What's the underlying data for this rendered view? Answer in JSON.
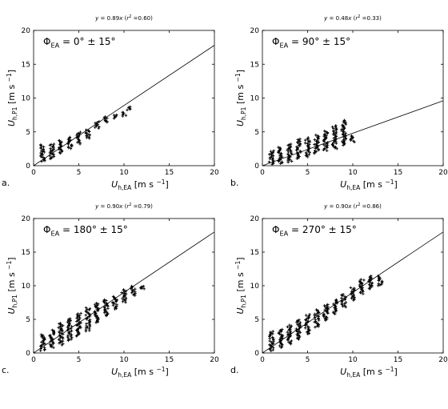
{
  "chart_data": [
    {
      "type": "scatter",
      "panel_label": "a.",
      "title": "y = 0.89x (r² =0.60)",
      "annotation": "Φ_EA = 0° ± 15°",
      "xlabel": "U_h,EA [m s⁻¹]",
      "ylabel": "U_h,P1 [m s⁻¹]",
      "xlim": [
        0,
        20
      ],
      "ylim": [
        0,
        20
      ],
      "xticks": [
        0,
        5,
        10,
        15,
        20
      ],
      "yticks": [
        0,
        5,
        10,
        15,
        20
      ],
      "grid": false,
      "fit": {
        "slope": 0.89,
        "r2": 0.6
      },
      "marker": "+",
      "clusters": [
        {
          "x": 1.0,
          "ymin": 0.6,
          "ymax": 3.2
        },
        {
          "x": 2.0,
          "ymin": 1.0,
          "ymax": 3.3
        },
        {
          "x": 3.0,
          "ymin": 1.8,
          "ymax": 3.8
        },
        {
          "x": 4.0,
          "ymin": 2.5,
          "ymax": 4.3
        },
        {
          "x": 5.0,
          "ymin": 3.2,
          "ymax": 5.0
        },
        {
          "x": 6.0,
          "ymin": 4.0,
          "ymax": 5.4
        },
        {
          "x": 7.0,
          "ymin": 5.5,
          "ymax": 6.6
        },
        {
          "x": 8.0,
          "ymin": 6.4,
          "ymax": 7.3
        },
        {
          "x": 9.0,
          "ymin": 7.0,
          "ymax": 7.6
        },
        {
          "x": 10.0,
          "ymin": 7.3,
          "ymax": 8.0
        },
        {
          "x": 10.5,
          "ymin": 8.2,
          "ymax": 8.8
        }
      ]
    },
    {
      "type": "scatter",
      "panel_label": "b.",
      "title": "y = 0.48x (r² =0.33)",
      "annotation": "Φ_EA = 90° ± 15°",
      "xlabel": "U_h,EA [m s⁻¹]",
      "ylabel": "U_h,P1 [m s⁻¹]",
      "xlim": [
        0,
        20
      ],
      "ylim": [
        0,
        20
      ],
      "xticks": [
        0,
        5,
        10,
        15,
        20
      ],
      "yticks": [
        0,
        5,
        10,
        15,
        20
      ],
      "grid": false,
      "fit": {
        "slope": 0.48,
        "r2": 0.33
      },
      "marker": "+",
      "clusters": [
        {
          "x": 1.0,
          "ymin": 0.2,
          "ymax": 2.3
        },
        {
          "x": 2.0,
          "ymin": 0.3,
          "ymax": 2.8
        },
        {
          "x": 3.0,
          "ymin": 0.5,
          "ymax": 3.3
        },
        {
          "x": 4.0,
          "ymin": 1.0,
          "ymax": 4.0
        },
        {
          "x": 5.0,
          "ymin": 1.3,
          "ymax": 4.2
        },
        {
          "x": 6.0,
          "ymin": 1.8,
          "ymax": 4.6
        },
        {
          "x": 7.0,
          "ymin": 2.2,
          "ymax": 5.2
        },
        {
          "x": 8.0,
          "ymin": 2.5,
          "ymax": 6.0
        },
        {
          "x": 9.0,
          "ymin": 3.0,
          "ymax": 6.8
        },
        {
          "x": 10.0,
          "ymin": 3.5,
          "ymax": 4.5
        }
      ]
    },
    {
      "type": "scatter",
      "panel_label": "c.",
      "title": "y = 0.90x (r² =0.79)",
      "annotation": "Φ_EA = 180° ± 15°",
      "xlabel": "U_h,EA [m s⁻¹]",
      "ylabel": "U_h,P1 [m s⁻¹]",
      "xlim": [
        0,
        20
      ],
      "ylim": [
        0,
        20
      ],
      "xticks": [
        0,
        5,
        10,
        15,
        20
      ],
      "yticks": [
        0,
        5,
        10,
        15,
        20
      ],
      "grid": false,
      "fit": {
        "slope": 0.9,
        "r2": 0.79
      },
      "marker": "+",
      "clusters": [
        {
          "x": 1.0,
          "ymin": 0.3,
          "ymax": 2.8
        },
        {
          "x": 2.0,
          "ymin": 0.8,
          "ymax": 3.5
        },
        {
          "x": 3.0,
          "ymin": 1.2,
          "ymax": 4.5
        },
        {
          "x": 4.0,
          "ymin": 1.8,
          "ymax": 5.2
        },
        {
          "x": 5.0,
          "ymin": 2.5,
          "ymax": 6.0
        },
        {
          "x": 6.0,
          "ymin": 3.2,
          "ymax": 6.8
        },
        {
          "x": 7.0,
          "ymin": 4.5,
          "ymax": 7.5
        },
        {
          "x": 8.0,
          "ymin": 5.5,
          "ymax": 8.0
        },
        {
          "x": 9.0,
          "ymin": 6.5,
          "ymax": 8.5
        },
        {
          "x": 10.0,
          "ymin": 7.5,
          "ymax": 9.5
        },
        {
          "x": 11.0,
          "ymin": 8.5,
          "ymax": 10.0
        },
        {
          "x": 12.0,
          "ymin": 9.5,
          "ymax": 10.0
        }
      ]
    },
    {
      "type": "scatter",
      "panel_label": "d.",
      "title": "y = 0.90x (r² =0.86)",
      "annotation": "Φ_EA = 270° ± 15°",
      "xlabel": "U_h,EA [m s⁻¹]",
      "ylabel": "U_h,P1 [m s⁻¹]",
      "xlim": [
        0,
        20
      ],
      "ylim": [
        0,
        20
      ],
      "xticks": [
        0,
        5,
        10,
        15,
        20
      ],
      "yticks": [
        0,
        5,
        10,
        15,
        20
      ],
      "grid": false,
      "fit": {
        "slope": 0.9,
        "r2": 0.86
      },
      "marker": "+",
      "clusters": [
        {
          "x": 1.0,
          "ymin": 0.3,
          "ymax": 3.3
        },
        {
          "x": 2.0,
          "ymin": 0.8,
          "ymax": 3.6
        },
        {
          "x": 3.0,
          "ymin": 1.3,
          "ymax": 4.2
        },
        {
          "x": 4.0,
          "ymin": 2.0,
          "ymax": 5.0
        },
        {
          "x": 5.0,
          "ymin": 2.8,
          "ymax": 5.8
        },
        {
          "x": 6.0,
          "ymin": 3.8,
          "ymax": 6.5
        },
        {
          "x": 7.0,
          "ymin": 4.8,
          "ymax": 7.3
        },
        {
          "x": 8.0,
          "ymin": 5.8,
          "ymax": 8.0
        },
        {
          "x": 9.0,
          "ymin": 6.8,
          "ymax": 8.8
        },
        {
          "x": 10.0,
          "ymin": 7.8,
          "ymax": 9.8
        },
        {
          "x": 11.0,
          "ymin": 8.8,
          "ymax": 11.0
        },
        {
          "x": 12.0,
          "ymin": 9.5,
          "ymax": 11.5
        },
        {
          "x": 13.0,
          "ymin": 10.0,
          "ymax": 11.5
        }
      ]
    }
  ]
}
